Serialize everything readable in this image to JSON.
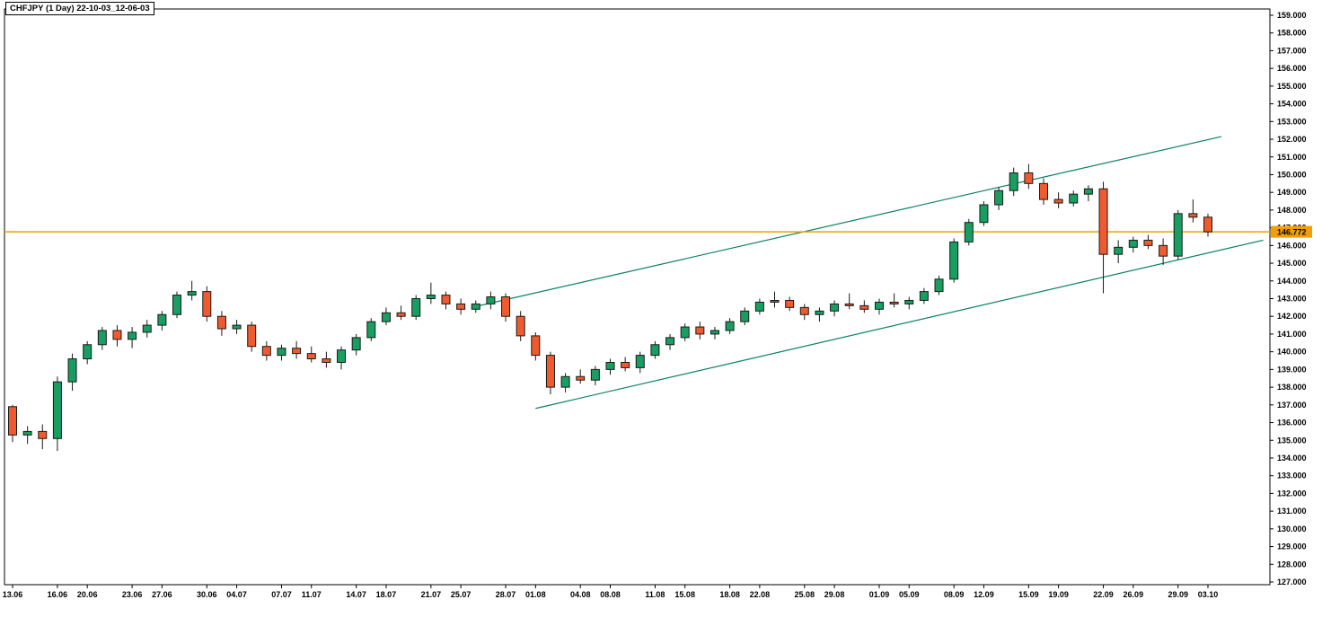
{
  "chart_data": {
    "type": "candlestick",
    "symbol": "CHFJPY",
    "timeframe": "1 Day",
    "title": "CHFJPY (1 Day) 22-10-03_12-06-03",
    "grid": false,
    "legend": "none",
    "price_axis": {
      "max": 159.0,
      "min": 127.0,
      "step": 1.0,
      "tick_labels": [
        "159.000",
        "158.000",
        "157.000",
        "156.000",
        "155.000",
        "154.000",
        "153.000",
        "152.000",
        "151.000",
        "150.000",
        "149.000",
        "148.000",
        "147.000",
        "146.000",
        "145.000",
        "144.000",
        "143.000",
        "142.000",
        "141.000",
        "140.000",
        "139.000",
        "138.000",
        "137.000",
        "136.000",
        "135.000",
        "134.000",
        "133.000",
        "132.000",
        "131.000",
        "130.000",
        "129.000",
        "128.000",
        "127.000"
      ]
    },
    "x_axis": {
      "tick_labels": [
        {
          "i": 0,
          "t": "13.06"
        },
        {
          "i": 3,
          "t": "16.06"
        },
        {
          "i": 5,
          "t": "20.06"
        },
        {
          "i": 8,
          "t": "23.06"
        },
        {
          "i": 10,
          "t": "27.06"
        },
        {
          "i": 13,
          "t": "30.06"
        },
        {
          "i": 15,
          "t": "04.07"
        },
        {
          "i": 18,
          "t": "07.07"
        },
        {
          "i": 20,
          "t": "11.07"
        },
        {
          "i": 23,
          "t": "14.07"
        },
        {
          "i": 25,
          "t": "18.07"
        },
        {
          "i": 28,
          "t": "21.07"
        },
        {
          "i": 30,
          "t": "25.07"
        },
        {
          "i": 33,
          "t": "28.07"
        },
        {
          "i": 35,
          "t": "01.08"
        },
        {
          "i": 38,
          "t": "04.08"
        },
        {
          "i": 40,
          "t": "08.08"
        },
        {
          "i": 43,
          "t": "11.08"
        },
        {
          "i": 45,
          "t": "15.08"
        },
        {
          "i": 48,
          "t": "18.08"
        },
        {
          "i": 50,
          "t": "22.08"
        },
        {
          "i": 53,
          "t": "25.08"
        },
        {
          "i": 55,
          "t": "29.08"
        },
        {
          "i": 58,
          "t": "01.09"
        },
        {
          "i": 60,
          "t": "05.09"
        },
        {
          "i": 63,
          "t": "08.09"
        },
        {
          "i": 65,
          "t": "12.09"
        },
        {
          "i": 68,
          "t": "15.09"
        },
        {
          "i": 70,
          "t": "19.09"
        },
        {
          "i": 73,
          "t": "22.09"
        },
        {
          "i": 75,
          "t": "26.09"
        },
        {
          "i": 78,
          "t": "29.09"
        },
        {
          "i": 80,
          "t": "03.10"
        }
      ]
    },
    "last_price": {
      "value": 146.772,
      "label": "146.772"
    },
    "candles": [
      [
        "13.06",
        136.9,
        137.0,
        134.9,
        135.3
      ],
      [
        "14.06",
        135.3,
        135.8,
        134.8,
        135.5
      ],
      [
        "15.06",
        135.5,
        135.9,
        134.5,
        135.1
      ],
      [
        "16.06",
        135.1,
        138.6,
        134.4,
        138.3
      ],
      [
        "17.06",
        138.3,
        139.9,
        137.8,
        139.6
      ],
      [
        "20.06",
        139.6,
        140.6,
        139.3,
        140.4
      ],
      [
        "21.06",
        140.4,
        141.4,
        140.1,
        141.2
      ],
      [
        "22.06",
        141.2,
        141.5,
        140.3,
        140.7
      ],
      [
        "23.06",
        140.7,
        141.4,
        140.2,
        141.1
      ],
      [
        "24.06",
        141.1,
        141.8,
        140.8,
        141.5
      ],
      [
        "27.06",
        141.5,
        142.3,
        141.2,
        142.1
      ],
      [
        "28.06",
        142.1,
        143.4,
        141.9,
        143.2
      ],
      [
        "29.06",
        143.2,
        144.0,
        142.9,
        143.4
      ],
      [
        "30.06",
        143.4,
        143.7,
        141.7,
        142.0
      ],
      [
        "01.07",
        142.0,
        142.3,
        140.9,
        141.3
      ],
      [
        "04.07",
        141.3,
        141.8,
        141.0,
        141.5
      ],
      [
        "05.07",
        141.5,
        141.7,
        140.0,
        140.3
      ],
      [
        "06.07",
        140.3,
        140.6,
        139.5,
        139.8
      ],
      [
        "07.07",
        139.8,
        140.4,
        139.5,
        140.2
      ],
      [
        "08.07",
        140.2,
        140.6,
        139.6,
        139.9
      ],
      [
        "11.07",
        139.9,
        140.3,
        139.4,
        139.6
      ],
      [
        "12.07",
        139.6,
        140.0,
        139.1,
        139.4
      ],
      [
        "13.07",
        139.4,
        140.3,
        139.0,
        140.1
      ],
      [
        "14.07",
        140.1,
        141.0,
        139.8,
        140.8
      ],
      [
        "15.07",
        140.8,
        141.9,
        140.6,
        141.7
      ],
      [
        "18.07",
        141.7,
        142.5,
        141.5,
        142.2
      ],
      [
        "19.07",
        142.2,
        142.6,
        141.8,
        142.0
      ],
      [
        "20.07",
        142.0,
        143.2,
        141.8,
        143.0
      ],
      [
        "21.07",
        143.0,
        143.9,
        142.7,
        143.2
      ],
      [
        "22.07",
        143.2,
        143.4,
        142.4,
        142.7
      ],
      [
        "25.07",
        142.7,
        143.0,
        142.1,
        142.4
      ],
      [
        "26.07",
        142.4,
        142.9,
        142.2,
        142.7
      ],
      [
        "27.07",
        142.7,
        143.4,
        142.4,
        143.1
      ],
      [
        "28.07",
        143.1,
        143.3,
        141.7,
        142.0
      ],
      [
        "29.07",
        142.0,
        142.3,
        140.6,
        140.9
      ],
      [
        "01.08",
        140.9,
        141.1,
        139.5,
        139.8
      ],
      [
        "02.08",
        139.8,
        140.0,
        137.6,
        138.0
      ],
      [
        "03.08",
        138.0,
        138.8,
        137.7,
        138.6
      ],
      [
        "04.08",
        138.6,
        139.0,
        138.2,
        138.4
      ],
      [
        "05.08",
        138.4,
        139.2,
        138.1,
        139.0
      ],
      [
        "08.08",
        139.0,
        139.6,
        138.7,
        139.4
      ],
      [
        "09.08",
        139.4,
        139.7,
        138.9,
        139.1
      ],
      [
        "10.08",
        139.1,
        140.0,
        138.8,
        139.8
      ],
      [
        "11.08",
        139.8,
        140.6,
        139.6,
        140.4
      ],
      [
        "12.08",
        140.4,
        141.0,
        140.1,
        140.8
      ],
      [
        "15.08",
        140.8,
        141.6,
        140.6,
        141.4
      ],
      [
        "16.08",
        141.4,
        141.7,
        140.7,
        141.0
      ],
      [
        "17.08",
        141.0,
        141.4,
        140.7,
        141.2
      ],
      [
        "18.08",
        141.2,
        141.9,
        141.0,
        141.7
      ],
      [
        "19.08",
        141.7,
        142.5,
        141.5,
        142.3
      ],
      [
        "22.08",
        142.3,
        143.0,
        142.1,
        142.8
      ],
      [
        "23.08",
        142.8,
        143.4,
        142.5,
        142.9
      ],
      [
        "24.08",
        142.9,
        143.1,
        142.3,
        142.5
      ],
      [
        "25.08",
        142.5,
        142.7,
        141.8,
        142.1
      ],
      [
        "26.08",
        142.1,
        142.5,
        141.7,
        142.3
      ],
      [
        "29.08",
        142.3,
        142.9,
        142.0,
        142.7
      ],
      [
        "30.08",
        142.7,
        143.3,
        142.4,
        142.6
      ],
      [
        "31.08",
        142.6,
        142.9,
        142.2,
        142.4
      ],
      [
        "01.09",
        142.4,
        143.0,
        142.1,
        142.8
      ],
      [
        "02.09",
        142.8,
        143.3,
        142.5,
        142.7
      ],
      [
        "05.09",
        142.7,
        143.1,
        142.4,
        142.9
      ],
      [
        "06.09",
        142.9,
        143.6,
        142.7,
        143.4
      ],
      [
        "07.09",
        143.4,
        144.3,
        143.2,
        144.1
      ],
      [
        "08.09",
        144.1,
        146.4,
        143.9,
        146.2
      ],
      [
        "09.09",
        146.2,
        147.5,
        146.0,
        147.3
      ],
      [
        "12.09",
        147.3,
        148.5,
        147.1,
        148.3
      ],
      [
        "13.09",
        148.3,
        149.3,
        148.0,
        149.1
      ],
      [
        "14.09",
        149.1,
        150.4,
        148.8,
        150.1
      ],
      [
        "15.09",
        150.1,
        150.6,
        149.2,
        149.5
      ],
      [
        "16.09",
        149.5,
        149.8,
        148.3,
        148.6
      ],
      [
        "19.09",
        148.6,
        149.0,
        148.1,
        148.4
      ],
      [
        "20.09",
        148.4,
        149.1,
        148.2,
        148.9
      ],
      [
        "21.09",
        148.9,
        149.4,
        148.5,
        149.2
      ],
      [
        "22.09",
        149.2,
        149.6,
        143.3,
        145.5
      ],
      [
        "23.09",
        145.5,
        146.3,
        145.0,
        145.9
      ],
      [
        "26.09",
        145.9,
        146.5,
        145.6,
        146.3
      ],
      [
        "27.09",
        146.3,
        146.6,
        145.8,
        146.0
      ],
      [
        "28.09",
        146.0,
        146.4,
        144.9,
        145.4
      ],
      [
        "29.09",
        145.4,
        148.0,
        145.2,
        147.8
      ],
      [
        "30.09",
        147.8,
        148.6,
        147.3,
        147.6
      ],
      [
        "03.10",
        147.6,
        147.8,
        146.5,
        146.772
      ]
    ],
    "trendlines": [
      {
        "name": "channel-upper",
        "i1": 30.7,
        "p1": 142.5,
        "i2": 80.9,
        "p2": 152.15
      },
      {
        "name": "channel-lower",
        "i1": 35.0,
        "p1": 136.8,
        "i2": 83.7,
        "p2": 146.3
      }
    ],
    "colors": {
      "bull": "#189e60",
      "bear": "#ef5a2e",
      "outline": "#1a1a1a",
      "trendline": "#0c8068",
      "last_price_line": "#e8a200",
      "last_price_bg": "#f0a000",
      "axis_text": "#000000",
      "background": "#ffffff"
    }
  }
}
